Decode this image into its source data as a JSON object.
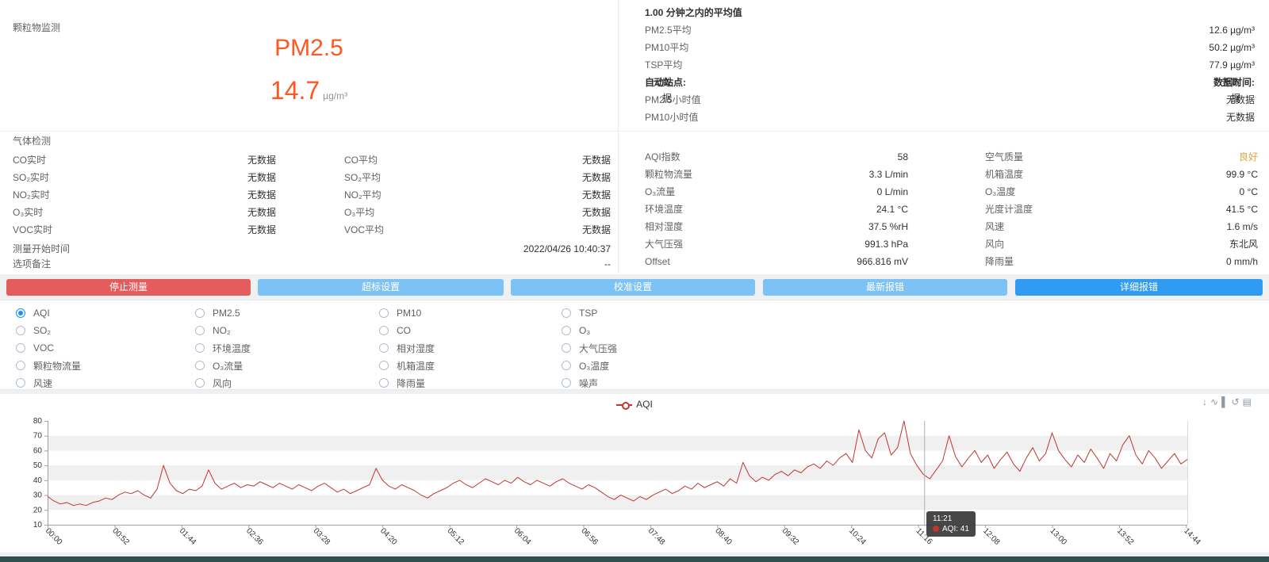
{
  "colors": {
    "accent_orange": "#ff5722",
    "good_status": "#e6a23c",
    "danger_button": "#e45c5c",
    "info_button": "#7cc2f4",
    "primary_button": "#2f9bf2",
    "series_red": "#c23531",
    "radio_selected": "#1890ff",
    "footer_bar": "#2f4f4f"
  },
  "particulate_panel": {
    "title": "颗粒物监测",
    "metric_label": "PM2.5",
    "metric_value": "14.7",
    "metric_unit": "µg/m³"
  },
  "average_panel": {
    "header": "1.00 分钟之内的平均值",
    "rows": [
      {
        "label": "PM2.5平均",
        "value": "12.6 µg/m³"
      },
      {
        "label": "PM10平均",
        "value": "50.2 µg/m³"
      },
      {
        "label": "TSP平均",
        "value": "77.9 µg/m³"
      }
    ],
    "station_label": "自动站点:",
    "station_value": "无数据",
    "data_time_label": "数据时间:",
    "data_time_value": "无数据",
    "hour_rows": [
      {
        "label": "PM2.5小时值",
        "value": "无数据"
      },
      {
        "label": "PM10小时值",
        "value": "无数据"
      }
    ]
  },
  "gas_panel": {
    "title": "气体检测",
    "rows": [
      {
        "label1": "CO实时",
        "value1": "无数据",
        "label2": "CO平均",
        "value2": "无数据"
      },
      {
        "label1": "SO₂实时",
        "value1": "无数据",
        "label2": "SO₂平均",
        "value2": "无数据"
      },
      {
        "label1": "NO₂实时",
        "value1": "无数据",
        "label2": "NO₂平均",
        "value2": "无数据"
      },
      {
        "label1": "O₃实时",
        "value1": "无数据",
        "label2": "O₃平均",
        "value2": "无数据"
      },
      {
        "label1": "VOC实时",
        "value1": "无数据",
        "label2": "VOC平均",
        "value2": "无数据"
      }
    ],
    "start_time_label": "测量开始时间",
    "start_time_value": "2022/04/26 10:40:37",
    "remark_label": "选项备注",
    "remark_value": "--"
  },
  "status_panel": {
    "rows": [
      {
        "label1": "AQI指数",
        "value1": "58",
        "label2": "空气质量",
        "value2": "良好",
        "value2_status": "good"
      },
      {
        "label1": "颗粒物流量",
        "value1": "3.3 L/min",
        "label2": "机箱温度",
        "value2": "99.9 °C"
      },
      {
        "label1": "O₃流量",
        "value1": "0 L/min",
        "label2": "O₃温度",
        "value2": "0 °C"
      },
      {
        "label1": "环境温度",
        "value1": "24.1 °C",
        "label2": "光度计温度",
        "value2": "41.5 °C"
      },
      {
        "label1": "相对湿度",
        "value1": "37.5 %rH",
        "label2": "风速",
        "value2": "1.6 m/s"
      },
      {
        "label1": "大气压强",
        "value1": "991.3 hPa",
        "label2": "风向",
        "value2": "东北风"
      },
      {
        "label1": "Offset",
        "value1": "966.816 mV",
        "label2": "降雨量",
        "value2": "0 mm/h"
      }
    ]
  },
  "toolbar": {
    "buttons": [
      {
        "label": "停止测量",
        "type": "danger"
      },
      {
        "label": "超标设置",
        "type": "info"
      },
      {
        "label": "校准设置",
        "type": "info"
      },
      {
        "label": "最新报错",
        "type": "info"
      },
      {
        "label": "详细报错",
        "type": "primary"
      }
    ]
  },
  "param_selector": {
    "options": [
      {
        "label": "AQI",
        "selected": true
      },
      {
        "label": "PM2.5",
        "selected": false
      },
      {
        "label": "PM10",
        "selected": false
      },
      {
        "label": "TSP",
        "selected": false
      },
      {
        "label": "SO₂",
        "selected": false
      },
      {
        "label": "NO₂",
        "selected": false
      },
      {
        "label": "CO",
        "selected": false
      },
      {
        "label": "O₃",
        "selected": false
      },
      {
        "label": "VOC",
        "selected": false
      },
      {
        "label": "环境温度",
        "selected": false
      },
      {
        "label": "相对湿度",
        "selected": false
      },
      {
        "label": "大气压强",
        "selected": false
      },
      {
        "label": "颗粒物流量",
        "selected": false
      },
      {
        "label": "O₃流量",
        "selected": false
      },
      {
        "label": "机箱温度",
        "selected": false
      },
      {
        "label": "O₃温度",
        "selected": false
      },
      {
        "label": "风速",
        "selected": false
      },
      {
        "label": "风向",
        "selected": false
      },
      {
        "label": "降雨量",
        "selected": false
      },
      {
        "label": "噪声",
        "selected": false
      }
    ]
  },
  "chart_data": {
    "type": "line",
    "legend": [
      {
        "name": "AQI",
        "color": "#c23531",
        "position": "top-center"
      }
    ],
    "ylim": [
      10,
      80
    ],
    "y_ticks": [
      10,
      20,
      30,
      40,
      50,
      60,
      70,
      80
    ],
    "x_tick_labels": [
      "00:00",
      "00:52",
      "01:44",
      "02:36",
      "03:28",
      "04:20",
      "05:12",
      "06:04",
      "06:56",
      "07:48",
      "08:40",
      "09:32",
      "10:24",
      "11:16",
      "12:08",
      "13:00",
      "13:52",
      "14:44"
    ],
    "x_tick_minutes": [
      0,
      52,
      104,
      156,
      208,
      260,
      312,
      364,
      416,
      468,
      520,
      572,
      624,
      676,
      728,
      780,
      832,
      884
    ],
    "x_start_minute": 0,
    "x_step_minutes": 5,
    "x_end_minute": 885,
    "values": [
      29,
      26,
      24,
      25,
      23,
      24,
      23,
      25,
      26,
      28,
      27,
      30,
      32,
      31,
      33,
      30,
      28,
      34,
      50,
      38,
      33,
      31,
      34,
      33,
      36,
      47,
      38,
      34,
      36,
      38,
      35,
      37,
      36,
      39,
      37,
      35,
      38,
      36,
      34,
      37,
      35,
      33,
      36,
      38,
      35,
      32,
      34,
      31,
      33,
      35,
      37,
      48,
      40,
      36,
      34,
      37,
      35,
      33,
      30,
      28,
      31,
      33,
      35,
      38,
      40,
      37,
      35,
      38,
      41,
      39,
      37,
      40,
      38,
      42,
      39,
      37,
      40,
      38,
      36,
      39,
      41,
      38,
      36,
      34,
      37,
      35,
      32,
      29,
      27,
      30,
      28,
      26,
      29,
      27,
      30,
      32,
      34,
      31,
      33,
      36,
      34,
      38,
      35,
      37,
      39,
      36,
      41,
      38,
      52,
      43,
      39,
      42,
      40,
      44,
      46,
      43,
      47,
      45,
      49,
      51,
      48,
      53,
      50,
      55,
      58,
      52,
      74,
      60,
      55,
      68,
      72,
      57,
      62,
      80,
      58,
      50,
      44,
      41,
      47,
      53,
      70,
      56,
      49,
      55,
      60,
      52,
      57,
      48,
      54,
      59,
      51,
      46,
      55,
      62,
      53,
      58,
      72,
      60,
      54,
      49,
      57,
      52,
      61,
      55,
      48,
      58,
      53,
      64,
      70,
      57,
      51,
      60,
      55,
      48,
      53,
      58,
      51,
      54
    ],
    "split_area": "zebra-gray",
    "grid_bands_gray": [
      "20-30",
      "40-50",
      "60-70"
    ],
    "tooltip": {
      "time": "11:21",
      "series": "AQI",
      "value": 41,
      "minute": 681
    },
    "toolbox_icons": [
      "save-image",
      "switch-line",
      "switch-bar",
      "restore",
      "data-view"
    ]
  }
}
